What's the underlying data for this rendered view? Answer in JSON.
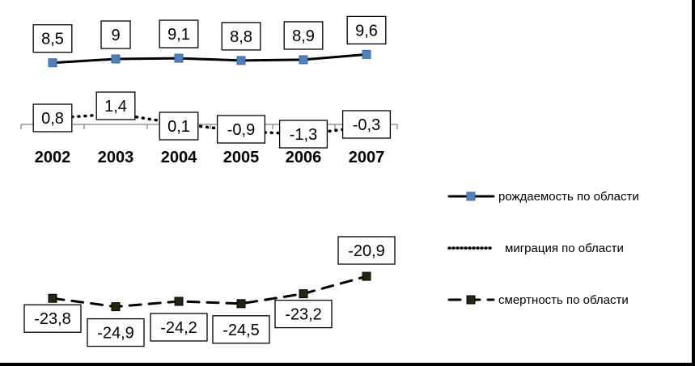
{
  "chart_data": {
    "type": "line",
    "categories": [
      "2002",
      "2003",
      "2004",
      "2005",
      "2006",
      "2007"
    ],
    "series": [
      {
        "name": "рождаемость по области",
        "values": [
          8.5,
          9,
          9.1,
          8.8,
          8.9,
          9.6
        ],
        "labels": [
          "8,5",
          "9",
          "9,1",
          "8,8",
          "8,9",
          "9,6"
        ],
        "line_style": "solid",
        "marker_color": "#4F81BD"
      },
      {
        "name": "миграция по области",
        "values": [
          0.8,
          1.4,
          0.1,
          -0.9,
          -1.3,
          -0.3
        ],
        "labels": [
          "0,8",
          "1,4",
          "0,1",
          "-0,9",
          "-1,3",
          "-0,3"
        ],
        "line_style": "dotted",
        "marker_color": null
      },
      {
        "name": "смертность по области",
        "values": [
          -23.8,
          -24.9,
          -24.2,
          -24.5,
          -23.2,
          -20.9
        ],
        "labels": [
          "-23,8",
          "-24,9",
          "-24,2",
          "-24,5",
          "-23,2",
          "-20,9"
        ],
        "line_style": "dashed",
        "marker_color": "#1E2A10"
      }
    ],
    "legend_position": "right",
    "grid": false
  }
}
